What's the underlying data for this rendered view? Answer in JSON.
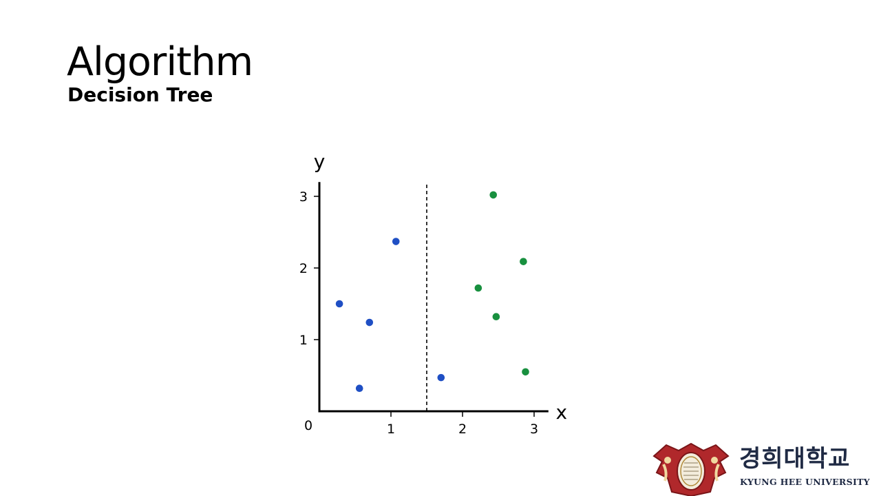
{
  "slide": {
    "title": "Algorithm",
    "subtitle": "Decision Tree"
  },
  "chart_data": {
    "type": "scatter",
    "xlabel": "x",
    "ylabel": "y",
    "xlim": [
      0,
      3.2
    ],
    "ylim": [
      0,
      3.2
    ],
    "x_ticks": [
      1,
      2,
      3
    ],
    "y_ticks": [
      1,
      2,
      3
    ],
    "origin_label": "0",
    "grid": false,
    "split_line": {
      "x": 1.5,
      "style": "dashed"
    },
    "series": [
      {
        "color": "#1f4fc4",
        "points": [
          {
            "x": 0.28,
            "y": 1.5
          },
          {
            "x": 0.7,
            "y": 1.24
          },
          {
            "x": 1.07,
            "y": 2.37
          },
          {
            "x": 0.56,
            "y": 0.32
          },
          {
            "x": 1.7,
            "y": 0.47
          }
        ]
      },
      {
        "color": "#18903f",
        "points": [
          {
            "x": 2.43,
            "y": 3.02
          },
          {
            "x": 2.85,
            "y": 2.09
          },
          {
            "x": 2.22,
            "y": 1.72
          },
          {
            "x": 2.47,
            "y": 1.32
          },
          {
            "x": 2.88,
            "y": 0.55
          }
        ]
      }
    ]
  },
  "logo": {
    "korean_name": "경희대학교",
    "english_name": "KYUNG HEE UNIVERSITY"
  },
  "colors": {
    "logo_red": "#b0282b",
    "logo_navy": "#1f2a44"
  }
}
